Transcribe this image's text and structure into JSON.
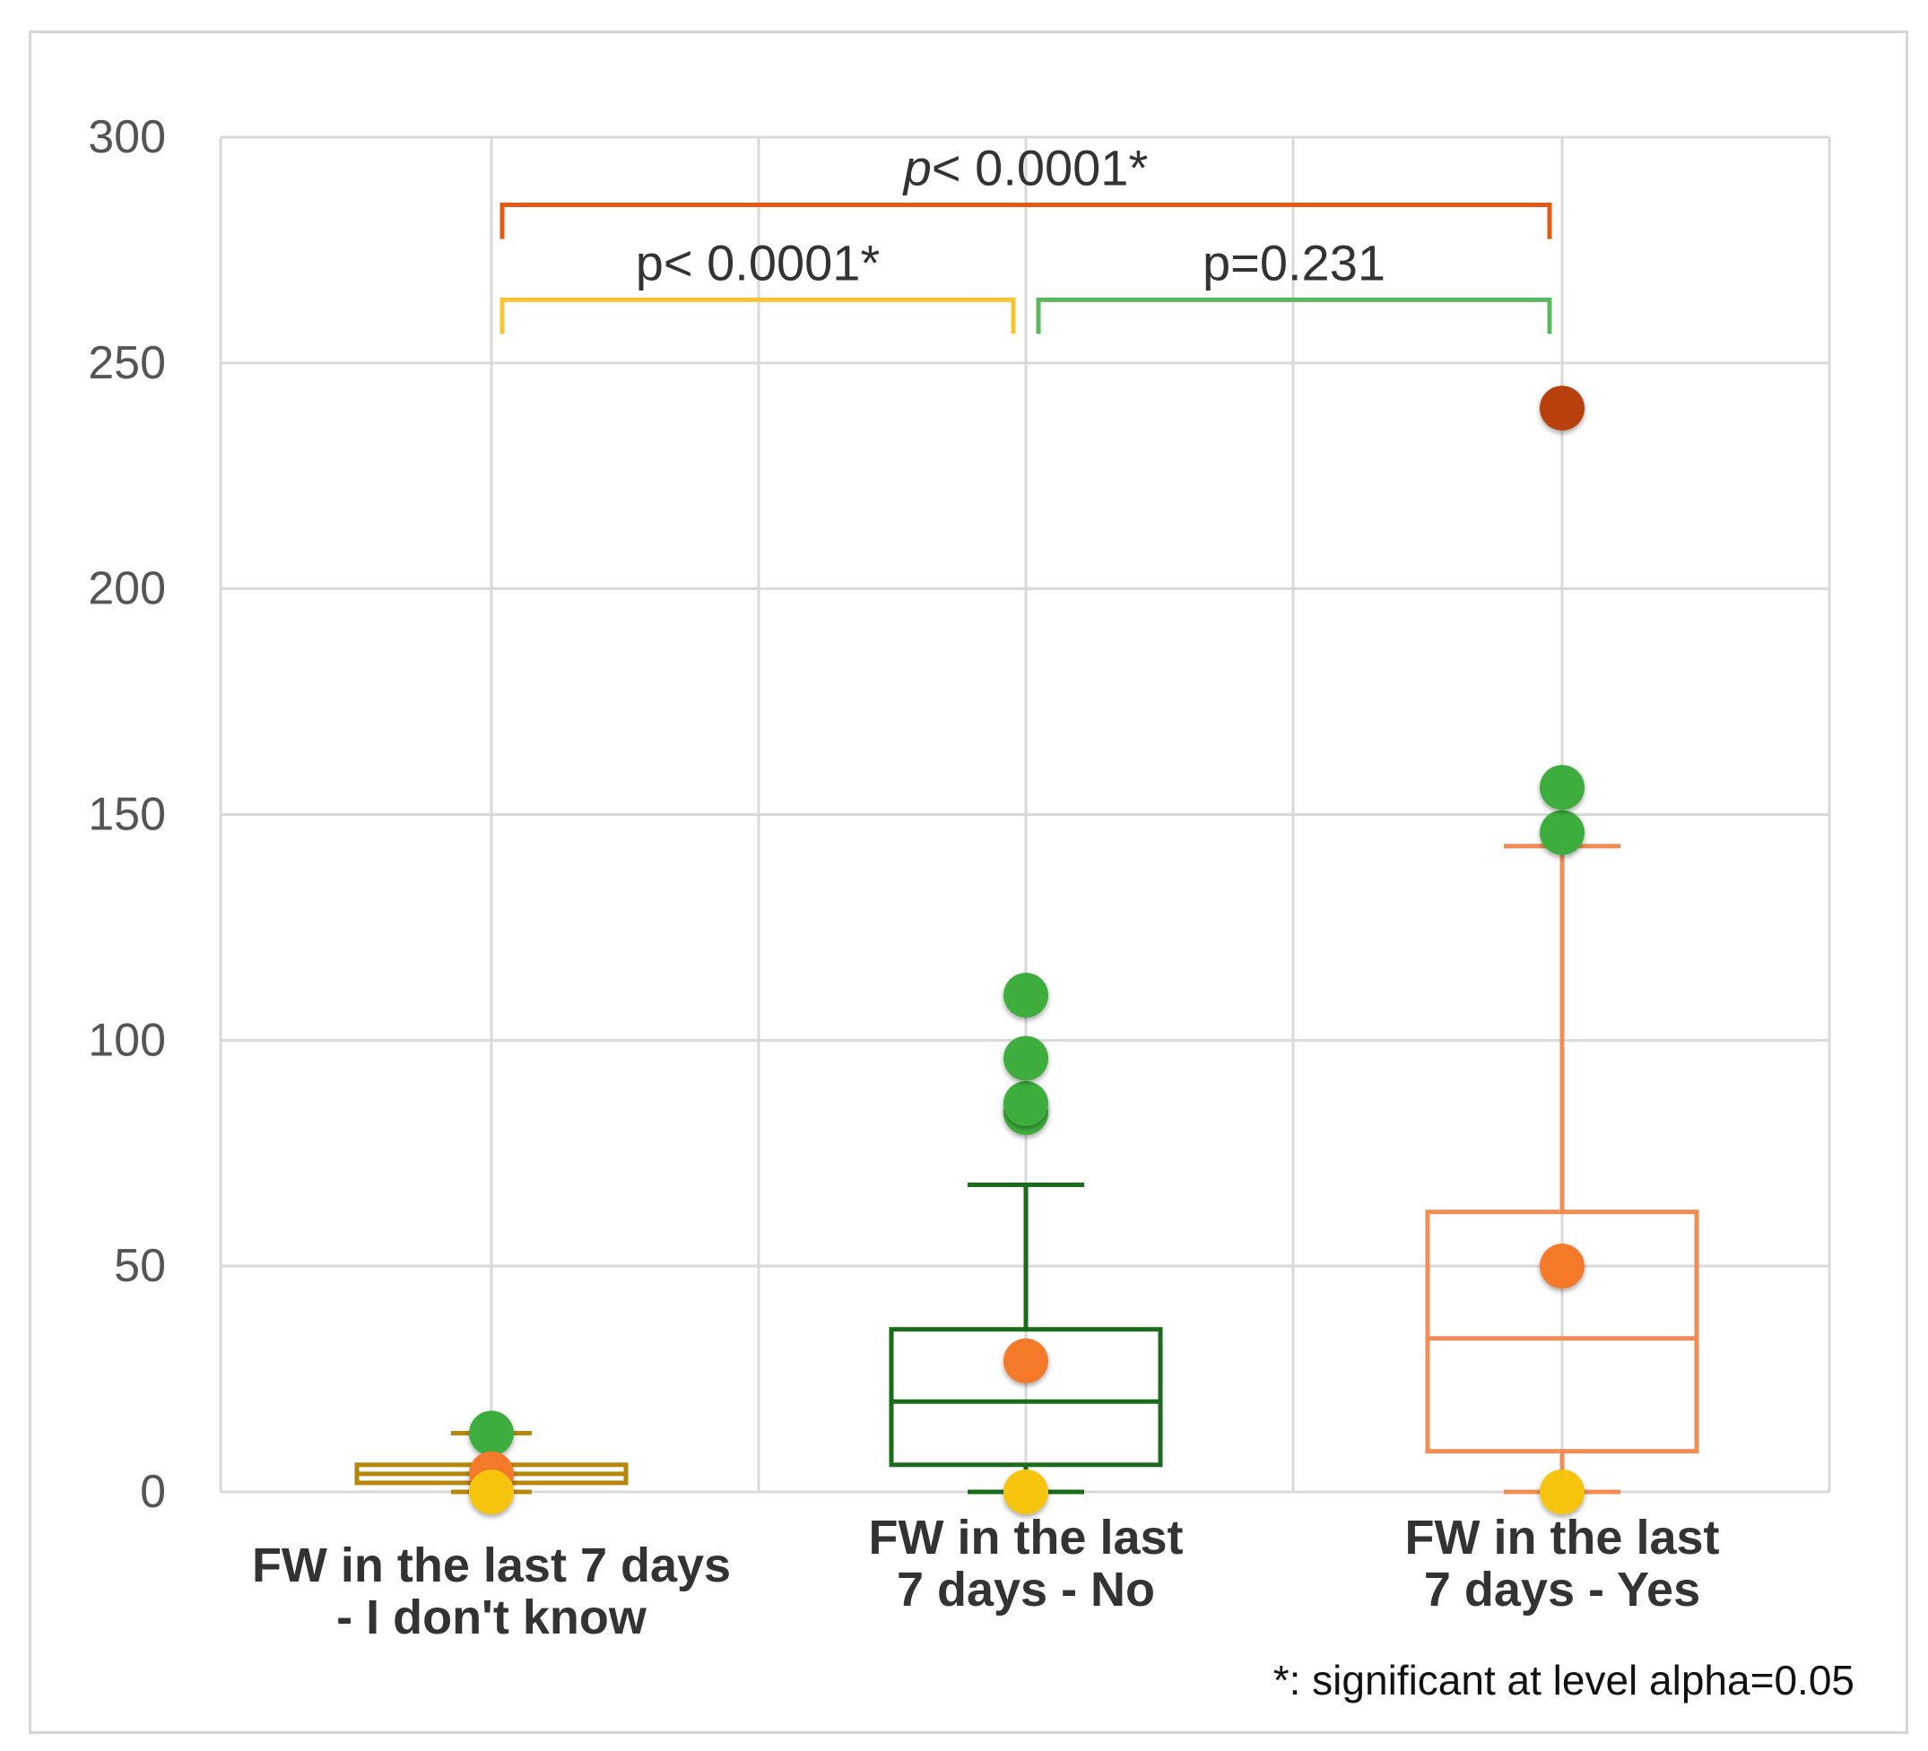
{
  "chart_data": {
    "type": "boxplot",
    "title": "",
    "xlabel": "",
    "ylabel": "",
    "ylim": [
      0,
      300
    ],
    "yticks": [
      0,
      50,
      100,
      150,
      200,
      250,
      300
    ],
    "grid": true,
    "categories": [
      {
        "line1": "FW in the last 7 days",
        "line2": "- I  don't know"
      },
      {
        "line1": "FW in the last",
        "line2": "7 days - No"
      },
      {
        "line1": "FW in the last",
        "line2": "7 days - Yes"
      }
    ],
    "boxes": [
      {
        "color": "#b8860b",
        "min": 0,
        "q1": 2,
        "median": 4,
        "q3": 6,
        "max": 13,
        "mean": 4,
        "min_marker": 0,
        "outliers": [
          13
        ]
      },
      {
        "color": "#1a6b1a",
        "min": 0,
        "q1": 6,
        "median": 20,
        "q3": 36,
        "max": 68,
        "mean": 29,
        "min_marker": 0,
        "outliers": [
          84,
          86,
          96,
          110
        ]
      },
      {
        "color": "#f28c52",
        "min": 0,
        "q1": 9,
        "median": 34,
        "q3": 62,
        "max": 143,
        "mean": 50,
        "min_marker": 0,
        "outliers": [
          146,
          156
        ],
        "max_outlier": 240
      }
    ],
    "marker_colors": {
      "outlier": "#3cae3c",
      "mean": "#f47a2c",
      "minimum": "#f7c40e",
      "maximum": "#b84008"
    },
    "comparisons": [
      {
        "from": 0,
        "to": 2,
        "label_prefix": "p",
        "label_rest": "< 0.0001*",
        "y_value": 285,
        "color": "#e05a16"
      },
      {
        "from": 0,
        "to": 1,
        "label_prefix": "",
        "label_rest": "p< 0.0001*",
        "y_value": 264,
        "color": "#f7c533"
      },
      {
        "from": 1,
        "to": 2,
        "label_prefix": "",
        "label_rest": "p=0.231",
        "y_value": 264,
        "color": "#5cb85c"
      }
    ],
    "footnote": "*: significant at level alpha=0.05"
  }
}
